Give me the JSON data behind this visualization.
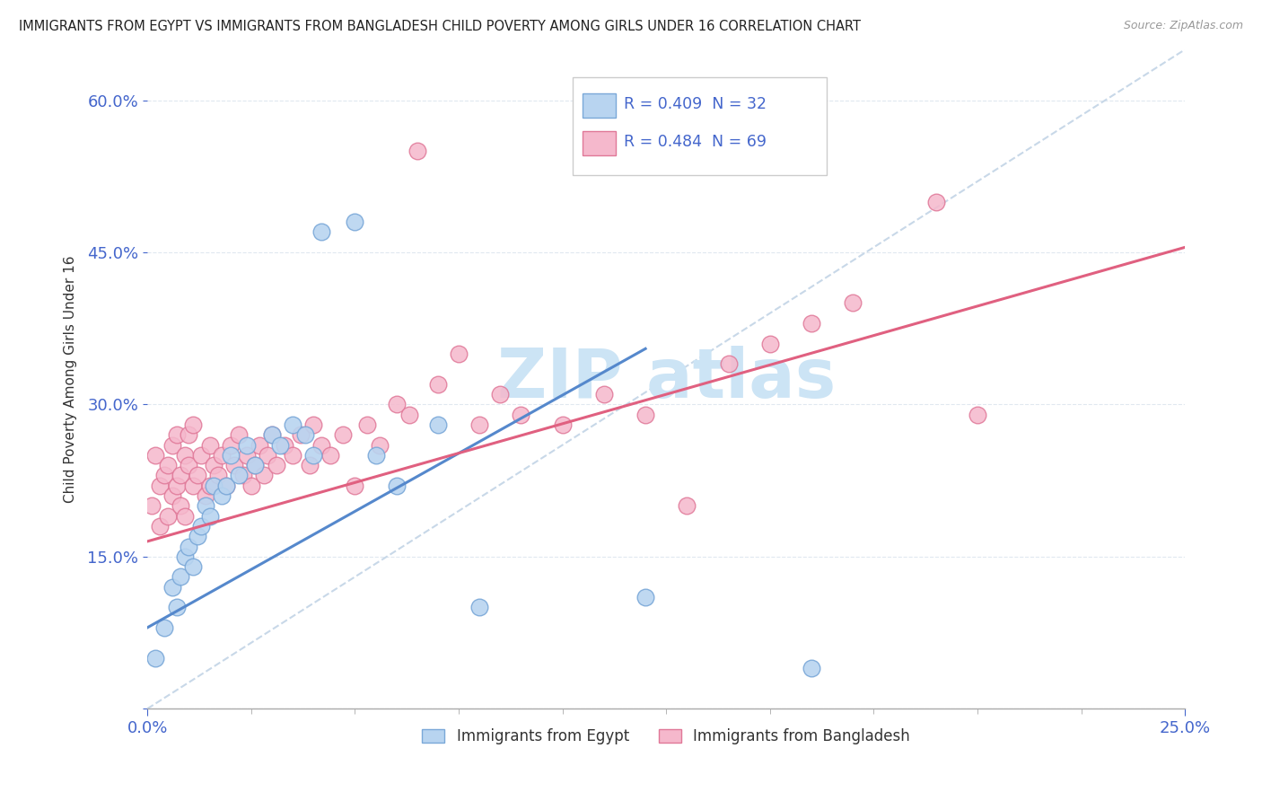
{
  "title": "IMMIGRANTS FROM EGYPT VS IMMIGRANTS FROM BANGLADESH CHILD POVERTY AMONG GIRLS UNDER 16 CORRELATION CHART",
  "source": "Source: ZipAtlas.com",
  "ylabel": "Child Poverty Among Girls Under 16",
  "xlim": [
    0.0,
    0.25
  ],
  "ylim": [
    0.0,
    0.65
  ],
  "R_egypt": 0.409,
  "N_egypt": 32,
  "R_bangladesh": 0.484,
  "N_bangladesh": 69,
  "color_egypt_fill": "#b8d4f0",
  "color_egypt_edge": "#7aa8d8",
  "color_bangladesh_fill": "#f5b8cc",
  "color_bangladesh_edge": "#e07898",
  "color_egypt_line": "#5588cc",
  "color_bangladesh_line": "#e06080",
  "color_ref_line": "#c8d8e8",
  "color_text_blue": "#4466cc",
  "color_grid": "#e0e8f0",
  "background_color": "#ffffff",
  "watermark_color": "#cce4f5",
  "legend_text_color": "#4466cc",
  "bottom_legend_color": "#333333",
  "egypt_x": [
    0.002,
    0.004,
    0.006,
    0.007,
    0.008,
    0.009,
    0.01,
    0.011,
    0.012,
    0.013,
    0.014,
    0.015,
    0.016,
    0.018,
    0.019,
    0.02,
    0.022,
    0.024,
    0.026,
    0.03,
    0.032,
    0.035,
    0.038,
    0.04,
    0.042,
    0.05,
    0.055,
    0.06,
    0.07,
    0.08,
    0.12,
    0.16
  ],
  "egypt_y": [
    0.05,
    0.08,
    0.12,
    0.1,
    0.13,
    0.15,
    0.16,
    0.14,
    0.17,
    0.18,
    0.2,
    0.19,
    0.22,
    0.21,
    0.22,
    0.25,
    0.23,
    0.26,
    0.24,
    0.27,
    0.26,
    0.28,
    0.27,
    0.25,
    0.47,
    0.48,
    0.25,
    0.22,
    0.28,
    0.1,
    0.11,
    0.04
  ],
  "bangladesh_x": [
    0.001,
    0.002,
    0.003,
    0.003,
    0.004,
    0.005,
    0.005,
    0.006,
    0.006,
    0.007,
    0.007,
    0.008,
    0.008,
    0.009,
    0.009,
    0.01,
    0.01,
    0.011,
    0.011,
    0.012,
    0.013,
    0.014,
    0.015,
    0.015,
    0.016,
    0.017,
    0.018,
    0.019,
    0.02,
    0.021,
    0.022,
    0.023,
    0.024,
    0.025,
    0.026,
    0.027,
    0.028,
    0.029,
    0.03,
    0.031,
    0.033,
    0.035,
    0.037,
    0.039,
    0.04,
    0.042,
    0.044,
    0.047,
    0.05,
    0.053,
    0.056,
    0.06,
    0.063,
    0.065,
    0.07,
    0.075,
    0.08,
    0.085,
    0.09,
    0.1,
    0.11,
    0.12,
    0.13,
    0.14,
    0.15,
    0.16,
    0.17,
    0.19,
    0.2
  ],
  "bangladesh_y": [
    0.2,
    0.25,
    0.22,
    0.18,
    0.23,
    0.19,
    0.24,
    0.21,
    0.26,
    0.22,
    0.27,
    0.2,
    0.23,
    0.25,
    0.19,
    0.24,
    0.27,
    0.22,
    0.28,
    0.23,
    0.25,
    0.21,
    0.26,
    0.22,
    0.24,
    0.23,
    0.25,
    0.22,
    0.26,
    0.24,
    0.27,
    0.23,
    0.25,
    0.22,
    0.24,
    0.26,
    0.23,
    0.25,
    0.27,
    0.24,
    0.26,
    0.25,
    0.27,
    0.24,
    0.28,
    0.26,
    0.25,
    0.27,
    0.22,
    0.28,
    0.26,
    0.3,
    0.29,
    0.55,
    0.32,
    0.35,
    0.28,
    0.31,
    0.29,
    0.28,
    0.31,
    0.29,
    0.2,
    0.34,
    0.36,
    0.38,
    0.4,
    0.5,
    0.29
  ],
  "egypt_line_x0": 0.0,
  "egypt_line_y0": 0.08,
  "egypt_line_x1": 0.12,
  "egypt_line_y1": 0.355,
  "bangladesh_line_x0": 0.0,
  "bangladesh_line_y0": 0.165,
  "bangladesh_line_x1": 0.25,
  "bangladesh_line_y1": 0.455
}
